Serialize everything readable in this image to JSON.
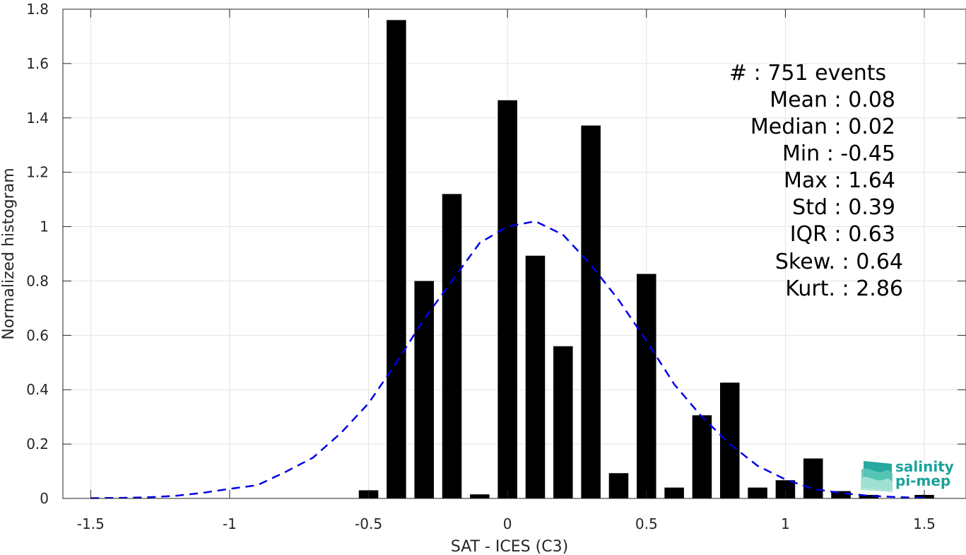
{
  "chart_data": {
    "type": "bar",
    "xlabel": "SAT - ICES (C3)",
    "ylabel": "Normalized histogram",
    "xlim": [
      -1.6,
      1.65
    ],
    "ylim": [
      0,
      1.8
    ],
    "xticks": [
      -1.5,
      -1,
      -0.5,
      0,
      0.5,
      1,
      1.5
    ],
    "xtick_labels": [
      "-1.5",
      "-1",
      "-0.5",
      "0",
      "0.5",
      "1",
      "1.5"
    ],
    "yticks": [
      0,
      0.2,
      0.4,
      0.6,
      0.8,
      1,
      1.2,
      1.4,
      1.6,
      1.8
    ],
    "ytick_labels": [
      "0",
      "0.2",
      "0.4",
      "0.6",
      "0.8",
      "1",
      "1.2",
      "1.4",
      "1.6",
      "1.8"
    ],
    "grid": true,
    "bar_color": "#000000",
    "bar_width": 0.07,
    "bars": [
      {
        "x": -0.5,
        "y": 0.03
      },
      {
        "x": -0.4,
        "y": 1.76
      },
      {
        "x": -0.3,
        "y": 0.8
      },
      {
        "x": -0.2,
        "y": 1.12
      },
      {
        "x": -0.1,
        "y": 0.015
      },
      {
        "x": 0.0,
        "y": 1.465
      },
      {
        "x": 0.1,
        "y": 0.893
      },
      {
        "x": 0.2,
        "y": 0.56
      },
      {
        "x": 0.3,
        "y": 1.372
      },
      {
        "x": 0.4,
        "y": 0.093
      },
      {
        "x": 0.5,
        "y": 0.826
      },
      {
        "x": 0.6,
        "y": 0.04
      },
      {
        "x": 0.7,
        "y": 0.306
      },
      {
        "x": 0.8,
        "y": 0.426
      },
      {
        "x": 0.9,
        "y": 0.04
      },
      {
        "x": 1.0,
        "y": 0.067
      },
      {
        "x": 1.1,
        "y": 0.147
      },
      {
        "x": 1.2,
        "y": 0.027
      },
      {
        "x": 1.3,
        "y": 0.013
      },
      {
        "x": 1.5,
        "y": 0.013
      }
    ],
    "fit_curve": {
      "color": "#0000e6",
      "style": "dashed",
      "x": [
        -1.5,
        -1.4,
        -1.3,
        -1.2,
        -1.1,
        -1.0,
        -0.9,
        -0.8,
        -0.7,
        -0.6,
        -0.5,
        -0.4,
        -0.3,
        -0.2,
        -0.1,
        0.0,
        0.1,
        0.2,
        0.3,
        0.4,
        0.5,
        0.6,
        0.7,
        0.8,
        0.9,
        1.0,
        1.1,
        1.2,
        1.3,
        1.4,
        1.5
      ],
      "y": [
        0.001,
        0.002,
        0.004,
        0.009,
        0.02,
        0.035,
        0.049,
        0.097,
        0.15,
        0.24,
        0.35,
        0.5,
        0.66,
        0.8,
        0.94,
        1.0,
        1.02,
        0.97,
        0.86,
        0.73,
        0.58,
        0.42,
        0.3,
        0.2,
        0.12,
        0.07,
        0.035,
        0.02,
        0.01,
        0.005,
        0.002
      ]
    },
    "stats": [
      "#  : 751 events",
      "Mean : 0.08",
      "Median : 0.02",
      "Min : -0.45",
      "Max : 1.64",
      "Std : 0.39",
      "IQR : 0.63",
      "Skew. : 0.64",
      "Kurt. : 2.86"
    ]
  },
  "logo": {
    "line1": "salinity",
    "line2": "pi-mep",
    "color": "#1aa39a"
  }
}
